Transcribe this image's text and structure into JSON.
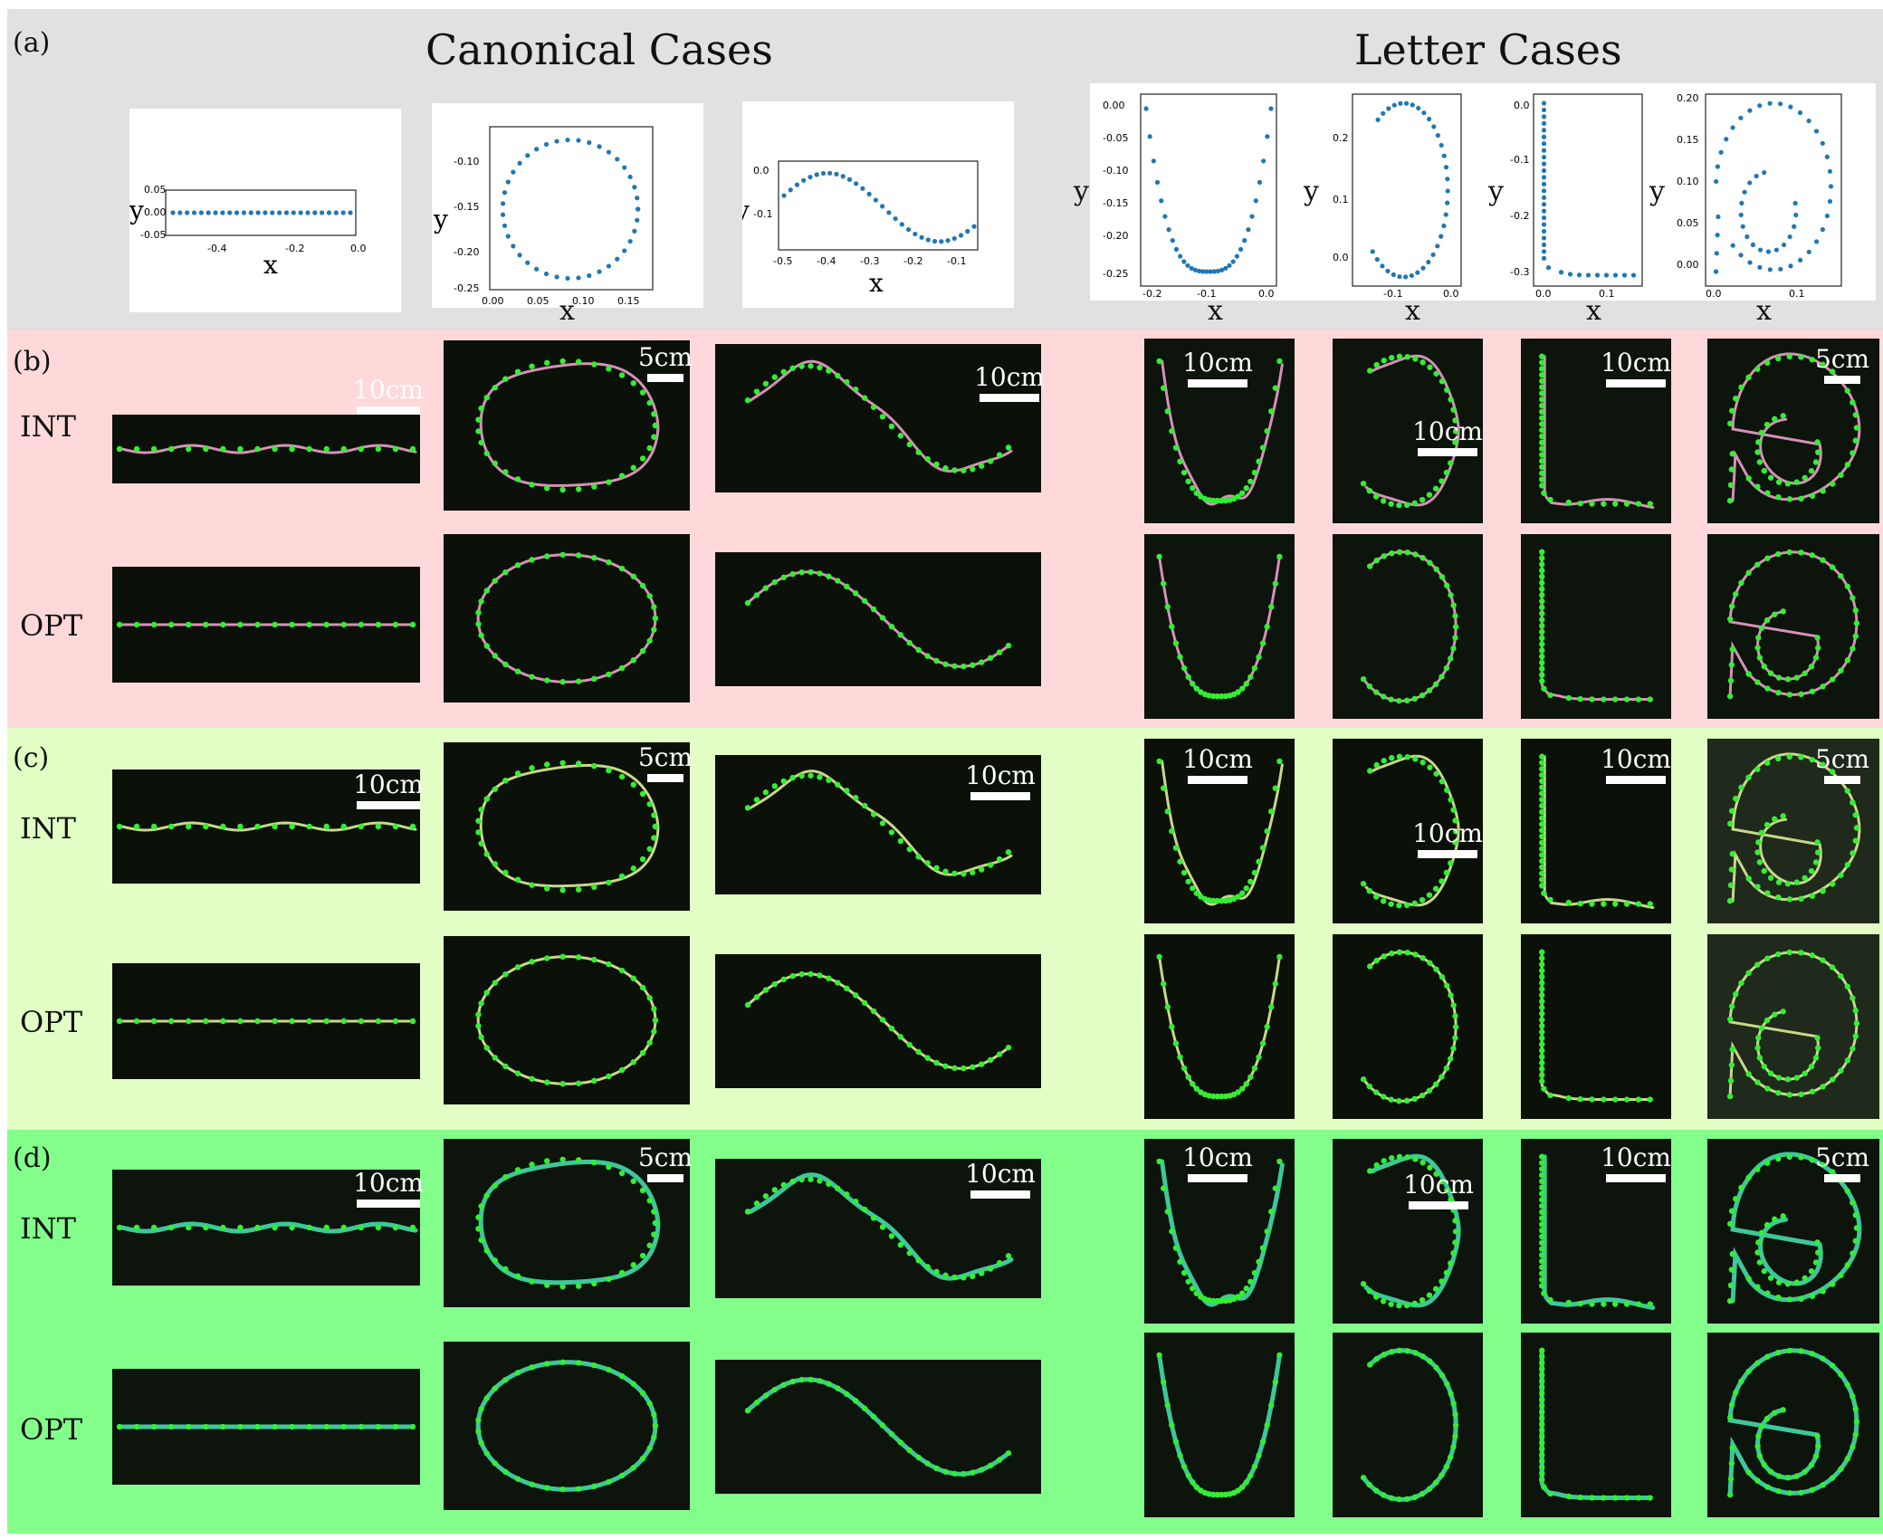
{
  "panels": {
    "a": "(a)",
    "b": "(b)",
    "c": "(c)",
    "d": "(d)"
  },
  "section_titles": {
    "canonical": "Canonical Cases",
    "letter": "Letter Cases"
  },
  "row_labels": {
    "int": "INT",
    "opt": "OPT"
  },
  "axis": {
    "x": "x",
    "y": "y"
  },
  "scale_labels": {
    "ten": "10cm",
    "five": "5cm"
  },
  "colors": {
    "band_a": "#e1e1e1",
    "band_b": "#ffd9d9",
    "band_c": "#e2fec5",
    "band_d": "#83fe8b",
    "marker": "#1f77b4",
    "dots": "#33ee33",
    "rod_b": "#d88fb8",
    "rod_c": "#c8d88a",
    "rod_d": "#3ec79a"
  },
  "chart_data": [
    {
      "type": "scatter",
      "name": "line",
      "xlim": [
        -0.52,
        0.02
      ],
      "ylim": [
        -0.06,
        0.06
      ],
      "xticks": [
        "-0.4",
        "-0.2",
        "0.0"
      ],
      "yticks": [
        "0.05",
        "0.00",
        "-0.05"
      ]
    },
    {
      "type": "scatter",
      "name": "circle",
      "xlim": [
        0.0,
        0.18
      ],
      "ylim": [
        -0.25,
        -0.07
      ],
      "xticks": [
        "0.00",
        "0.05",
        "0.10",
        "0.15"
      ],
      "yticks": [
        "-0.10",
        "-0.15",
        "-0.20",
        "-0.25"
      ]
    },
    {
      "type": "scatter",
      "name": "sine",
      "xlim": [
        -0.52,
        -0.04
      ],
      "ylim": [
        -0.17,
        0.01
      ],
      "xticks": [
        "-0.5",
        "-0.4",
        "-0.3",
        "-0.2",
        "-0.1"
      ],
      "yticks": [
        "0.0",
        "-0.1"
      ]
    },
    {
      "type": "scatter",
      "name": "U",
      "xlim": [
        -0.21,
        0.01
      ],
      "ylim": [
        -0.25,
        0.0
      ],
      "xticks": [
        "-0.2",
        "-0.1",
        "0.0"
      ],
      "yticks": [
        "0.00",
        "-0.05",
        "-0.10",
        "-0.15",
        "-0.20",
        "-0.25"
      ]
    },
    {
      "type": "scatter",
      "name": "C",
      "xlim": [
        -0.17,
        0.01
      ],
      "ylim": [
        -0.02,
        0.26
      ],
      "xticks": [
        "-0.1",
        "0.0"
      ],
      "yticks": [
        "0.2",
        "0.1",
        "0.0"
      ]
    },
    {
      "type": "scatter",
      "name": "L",
      "xlim": [
        -0.01,
        0.16
      ],
      "ylim": [
        -0.31,
        0.0
      ],
      "xticks": [
        "0.0",
        "0.1"
      ],
      "yticks": [
        "0.0",
        "-0.1",
        "-0.2",
        "-0.3"
      ]
    },
    {
      "type": "scatter",
      "name": "a",
      "xlim": [
        -0.01,
        0.15
      ],
      "ylim": [
        -0.01,
        0.2
      ],
      "xticks": [
        "0.0",
        "0.1"
      ],
      "yticks": [
        "0.20",
        "0.15",
        "0.10",
        "0.05",
        "0.00"
      ]
    }
  ]
}
